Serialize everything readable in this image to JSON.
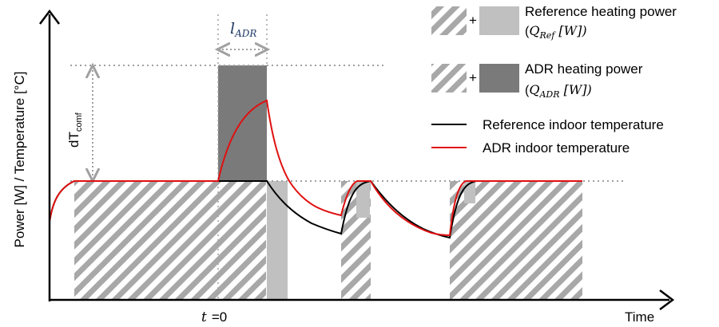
{
  "axes": {
    "y_label": "Power [W] / Temperature [°C]",
    "x_label": "Time",
    "t0_label_var": "t",
    "t0_label_val": "=0"
  },
  "annotations": {
    "l_adr": {
      "main": "l",
      "sub": "ADR"
    },
    "dt_comf": {
      "main": "dT",
      "sub": "comf"
    }
  },
  "legend": {
    "reference_power": {
      "line1": "Reference heating power",
      "line2_open": "(",
      "line2_var": "Q",
      "line2_sub": "Ref",
      "line2_rest": " [W])"
    },
    "adr_power": {
      "line1": "ADR heating power",
      "line2_open": "(",
      "line2_var": "Q",
      "line2_sub": "ADR",
      "line2_rest": " [W])"
    },
    "plus": "+",
    "reference_temperature": "Reference indoor temperature",
    "adr_temperature": "ADR indoor temperature"
  },
  "colors": {
    "reference_line": "#000000",
    "adr_line": "#e01010",
    "light_block": "#c0c0c0",
    "dark_block": "#7a7a7a",
    "hatch": "#a8a8a8",
    "dotted": "#a0a0a0"
  }
}
